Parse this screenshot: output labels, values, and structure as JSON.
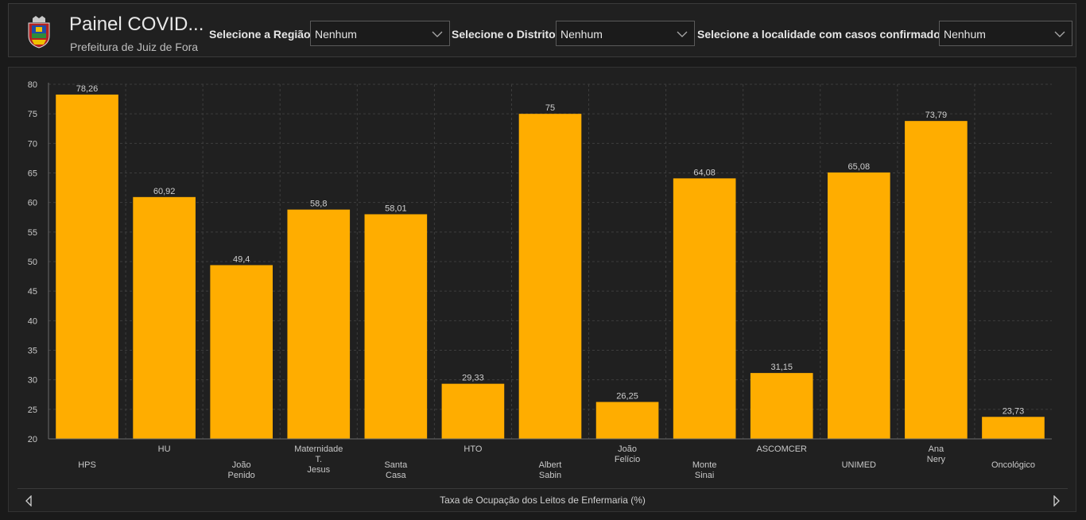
{
  "header": {
    "title": "Painel COVID...",
    "subtitle": "Prefeitura de Juiz de Fora",
    "filters": [
      {
        "label": "Selecione a Região",
        "value": "Nenhum"
      },
      {
        "label": "Selecione o Distrito",
        "value": "Nenhum"
      },
      {
        "label": "Selecione a localidade com casos confirmados",
        "value": "Nenhum"
      }
    ]
  },
  "chart_data": {
    "type": "bar",
    "categories": [
      [
        "HPS"
      ],
      [
        "HU"
      ],
      [
        "João",
        "Penido"
      ],
      [
        "Maternidade",
        "T.",
        "Jesus"
      ],
      [
        "Santa",
        "Casa"
      ],
      [
        "HTO"
      ],
      [
        "Albert",
        "Sabin"
      ],
      [
        "João",
        "Felício"
      ],
      [
        "Monte",
        "Sinai"
      ],
      [
        "ASCOMCER"
      ],
      [
        "UNIMED"
      ],
      [
        "Ana",
        "Nery"
      ],
      [
        "Oncológico"
      ]
    ],
    "values": [
      78.26,
      60.92,
      49.4,
      58.8,
      58.01,
      29.33,
      75,
      26.25,
      64.08,
      31.15,
      65.08,
      73.79,
      23.73
    ],
    "value_labels": [
      "78,26",
      "60,92",
      "49,4",
      "58,8",
      "58,01",
      "29,33",
      "75",
      "26,25",
      "64,08",
      "31,15",
      "65,08",
      "73,79",
      "23,73"
    ],
    "xlabel": "Taxa de Ocupação dos Leitos de Enfermaria (%)",
    "ylabel": "",
    "ylim": [
      20,
      80
    ],
    "yticks": [
      20,
      25,
      30,
      35,
      40,
      45,
      50,
      55,
      60,
      65,
      70,
      75,
      80
    ],
    "grid": true,
    "bar_color": "#ffad00"
  },
  "colors": {
    "background": "#1a1a1a",
    "panel": "#202020",
    "bar": "#ffad00"
  }
}
